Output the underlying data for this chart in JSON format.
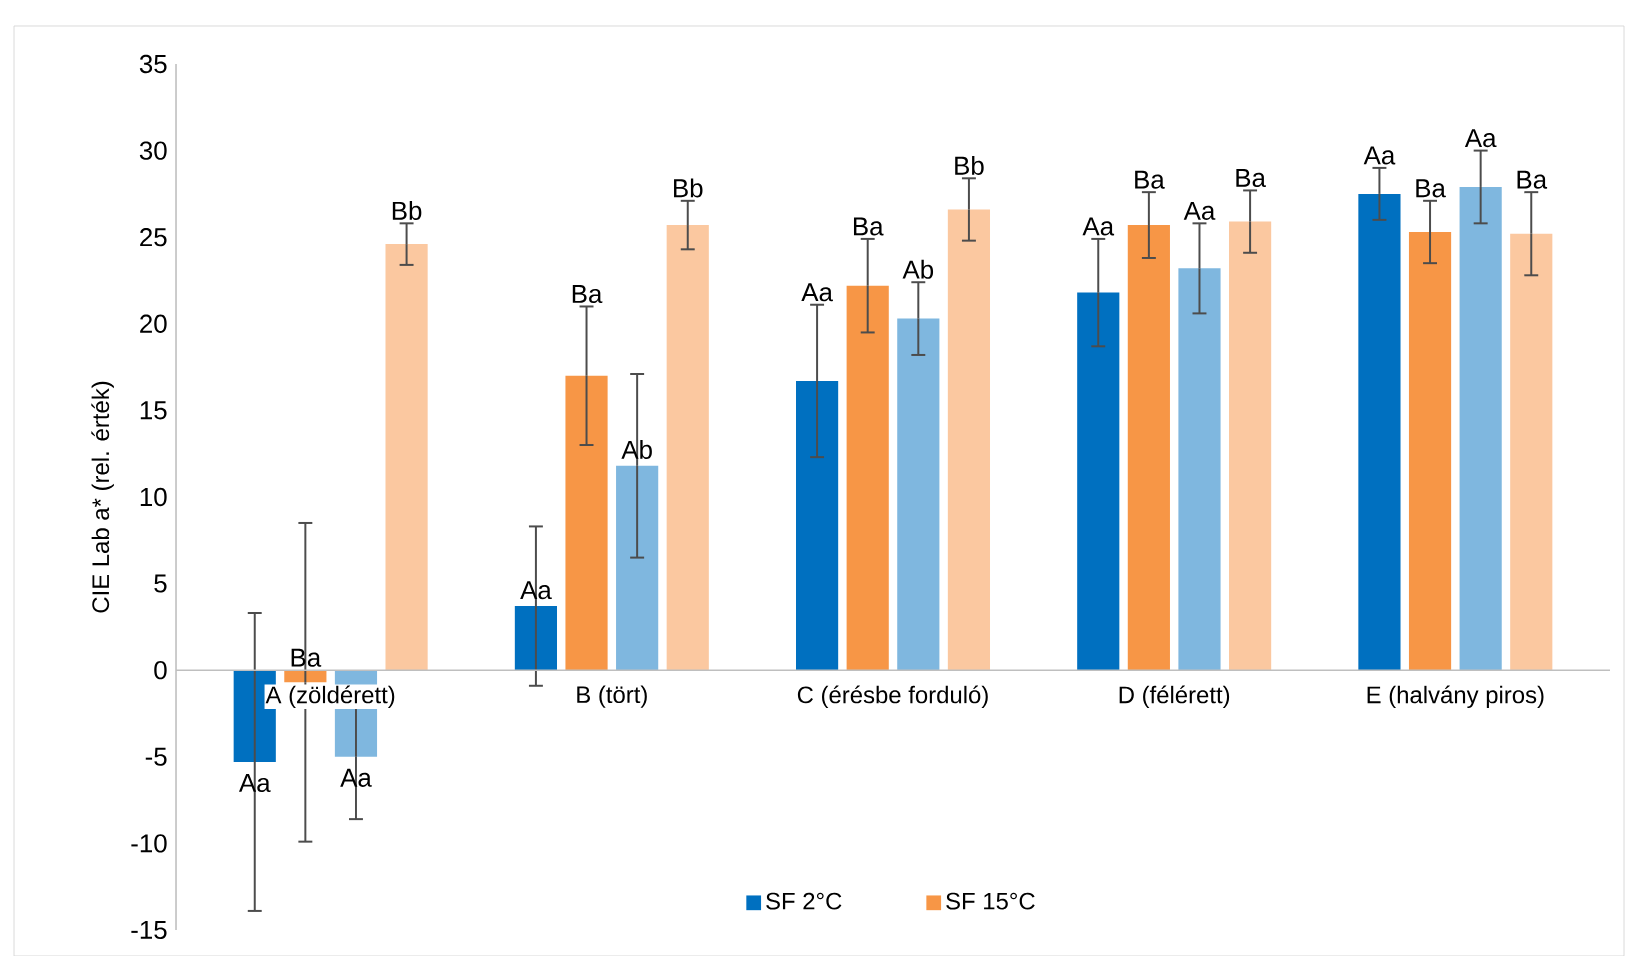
{
  "chart_data": {
    "type": "bar",
    "ylabel": "CIE Lab a* (rel. érték)",
    "categories": [
      "A (zöldérett)",
      "B (tört)",
      "C (érésbe forduló)",
      "D (félérett)",
      "E (halvány piros)"
    ],
    "series": [
      {
        "name": "SF 2°C",
        "color": "#0070c0",
        "values": [
          -5.3,
          3.7,
          16.7,
          21.8,
          27.5
        ],
        "errors": [
          8.6,
          4.6,
          4.4,
          3.1,
          1.5
        ],
        "value_labels": [
          "Aa",
          "Aa",
          "Aa",
          "Aa",
          "Aa"
        ]
      },
      {
        "name": "SF 15°C",
        "color": "#f79646",
        "values": [
          -0.7,
          17.0,
          22.2,
          25.7,
          25.3
        ],
        "errors": [
          9.2,
          4.0,
          2.7,
          1.9,
          1.8
        ],
        "value_labels": [
          "Ba",
          "Ba",
          "Ba",
          "Ba",
          "Ba"
        ]
      },
      {
        "color": "#7fb7df",
        "values": [
          -5.0,
          11.8,
          20.3,
          23.2,
          27.9
        ],
        "errors": [
          3.6,
          5.3,
          2.1,
          2.6,
          2.1
        ],
        "value_labels": [
          "Aa",
          "Ab",
          "Ab",
          "Aa",
          "Aa"
        ]
      },
      {
        "color": "#fbc8a0",
        "values": [
          24.6,
          25.7,
          26.6,
          25.9,
          25.2
        ],
        "errors": [
          1.2,
          1.4,
          1.8,
          1.8,
          2.4
        ],
        "value_labels": [
          "Bb",
          "Bb",
          "Bb",
          "Ba",
          "Ba"
        ]
      }
    ],
    "ylim": [
      -15,
      35
    ],
    "yticks": [
      -15,
      -10,
      -5,
      0,
      5,
      10,
      15,
      20,
      25,
      30,
      35
    ],
    "grid": false,
    "legend": "bottom"
  }
}
